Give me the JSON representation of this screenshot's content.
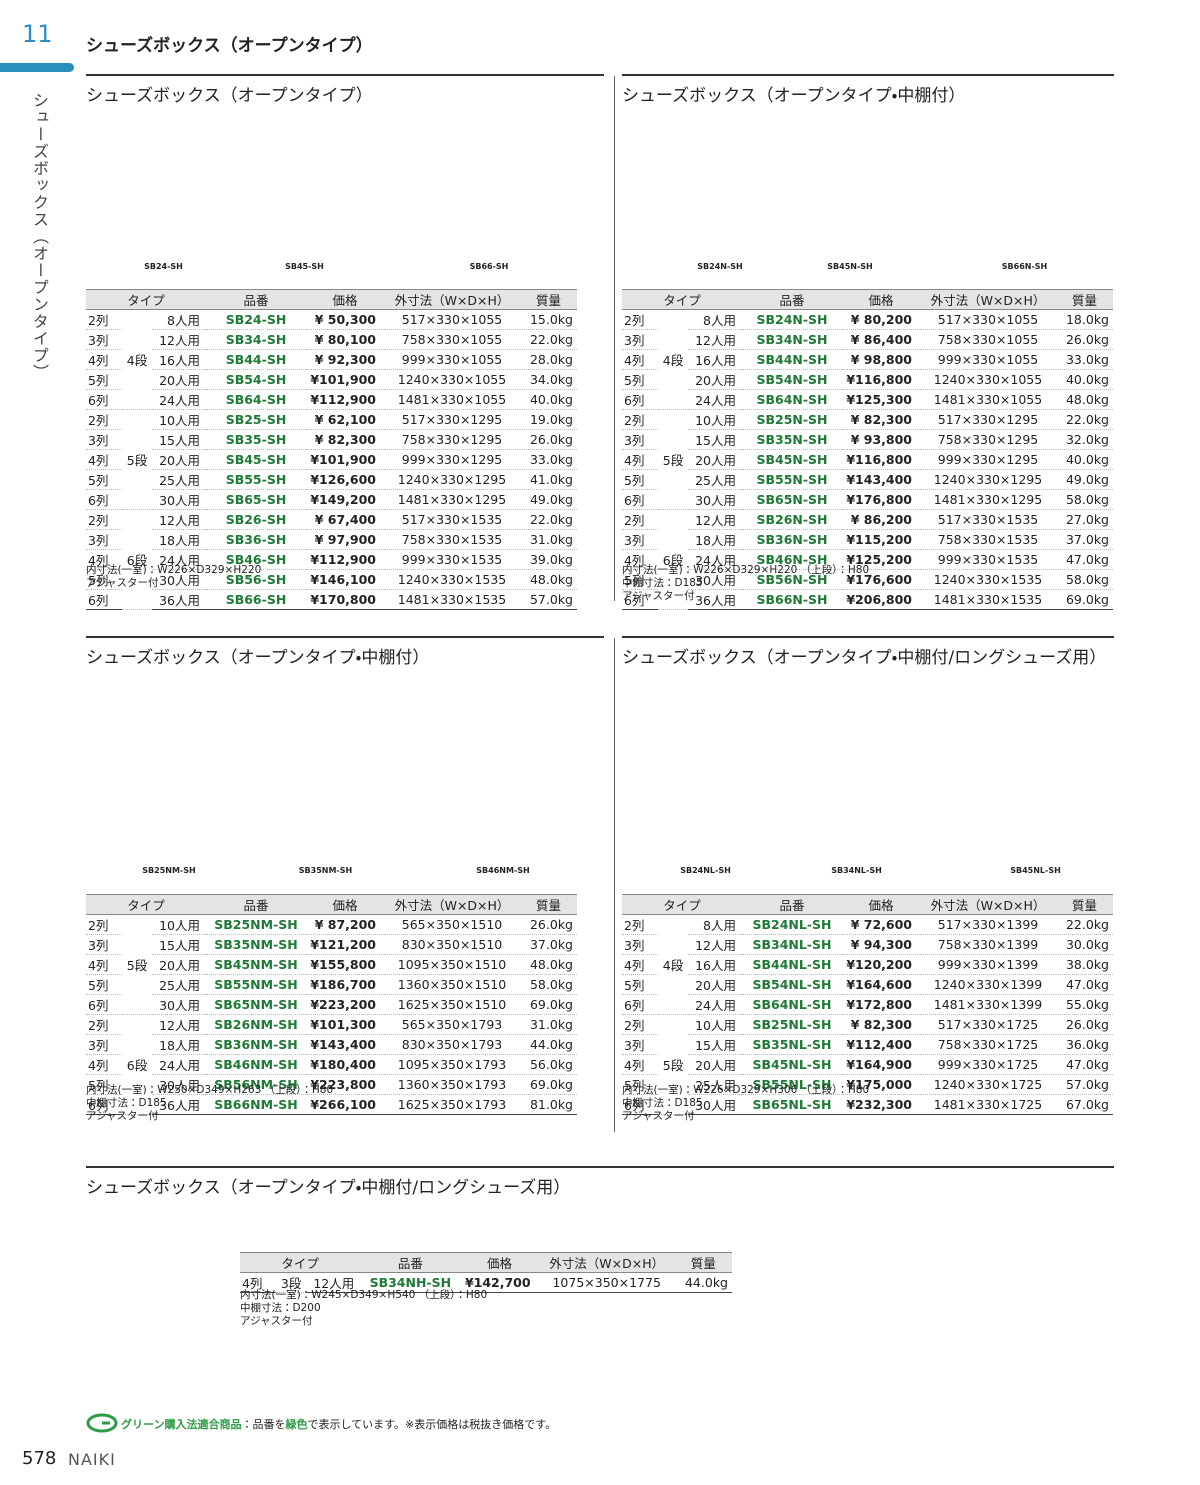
{
  "header": {
    "chapter": "11",
    "title": "シューズボックス（オープンタイプ）",
    "side_label": "シューズボックス（オープンタイプ）"
  },
  "table_headers": [
    "タイプ",
    "品番",
    "価格",
    "外寸法（W×D×H）",
    "質量"
  ],
  "sections": [
    {
      "title": "シューズボックス（オープンタイプ）",
      "images": [
        "SB24-SH",
        "SB45-SH",
        "SB66-SH"
      ],
      "groups": [
        {
          "tier": "4段",
          "rows": [
            [
              "2列",
              "8人用",
              "SB24-SH",
              "¥ 50,300",
              "517×330×1055",
              "15.0kg"
            ],
            [
              "3列",
              "12人用",
              "SB34-SH",
              "¥ 80,100",
              "758×330×1055",
              "22.0kg"
            ],
            [
              "4列",
              "16人用",
              "SB44-SH",
              "¥ 92,300",
              "999×330×1055",
              "28.0kg"
            ],
            [
              "5列",
              "20人用",
              "SB54-SH",
              "¥101,900",
              "1240×330×1055",
              "34.0kg"
            ],
            [
              "6列",
              "24人用",
              "SB64-SH",
              "¥112,900",
              "1481×330×1055",
              "40.0kg"
            ]
          ]
        },
        {
          "tier": "5段",
          "rows": [
            [
              "2列",
              "10人用",
              "SB25-SH",
              "¥ 62,100",
              "517×330×1295",
              "19.0kg"
            ],
            [
              "3列",
              "15人用",
              "SB35-SH",
              "¥ 82,300",
              "758×330×1295",
              "26.0kg"
            ],
            [
              "4列",
              "20人用",
              "SB45-SH",
              "¥101,900",
              "999×330×1295",
              "33.0kg"
            ],
            [
              "5列",
              "25人用",
              "SB55-SH",
              "¥126,600",
              "1240×330×1295",
              "41.0kg"
            ],
            [
              "6列",
              "30人用",
              "SB65-SH",
              "¥149,200",
              "1481×330×1295",
              "49.0kg"
            ]
          ]
        },
        {
          "tier": "6段",
          "rows": [
            [
              "2列",
              "12人用",
              "SB26-SH",
              "¥ 67,400",
              "517×330×1535",
              "22.0kg"
            ],
            [
              "3列",
              "18人用",
              "SB36-SH",
              "¥ 97,900",
              "758×330×1535",
              "31.0kg"
            ],
            [
              "4列",
              "24人用",
              "SB46-SH",
              "¥112,900",
              "999×330×1535",
              "39.0kg"
            ],
            [
              "5列",
              "30人用",
              "SB56-SH",
              "¥146,100",
              "1240×330×1535",
              "48.0kg"
            ],
            [
              "6列",
              "36人用",
              "SB66-SH",
              "¥170,800",
              "1481×330×1535",
              "57.0kg"
            ]
          ]
        }
      ],
      "notes": [
        "内寸法(一室)：W226×D329×H220",
        "アジャスター付"
      ]
    },
    {
      "title": "シューズボックス（オープンタイプ・中棚付）",
      "images": [
        "SB24N-SH",
        "SB45N-SH",
        "SB66N-SH"
      ],
      "groups": [
        {
          "tier": "4段",
          "rows": [
            [
              "2列",
              "8人用",
              "SB24N-SH",
              "¥ 80,200",
              "517×330×1055",
              "18.0kg"
            ],
            [
              "3列",
              "12人用",
              "SB34N-SH",
              "¥ 86,400",
              "758×330×1055",
              "26.0kg"
            ],
            [
              "4列",
              "16人用",
              "SB44N-SH",
              "¥ 98,800",
              "999×330×1055",
              "33.0kg"
            ],
            [
              "5列",
              "20人用",
              "SB54N-SH",
              "¥116,800",
              "1240×330×1055",
              "40.0kg"
            ],
            [
              "6列",
              "24人用",
              "SB64N-SH",
              "¥125,300",
              "1481×330×1055",
              "48.0kg"
            ]
          ]
        },
        {
          "tier": "5段",
          "rows": [
            [
              "2列",
              "10人用",
              "SB25N-SH",
              "¥ 82,300",
              "517×330×1295",
              "22.0kg"
            ],
            [
              "3列",
              "15人用",
              "SB35N-SH",
              "¥ 93,800",
              "758×330×1295",
              "32.0kg"
            ],
            [
              "4列",
              "20人用",
              "SB45N-SH",
              "¥116,800",
              "999×330×1295",
              "40.0kg"
            ],
            [
              "5列",
              "25人用",
              "SB55N-SH",
              "¥143,400",
              "1240×330×1295",
              "49.0kg"
            ],
            [
              "6列",
              "30人用",
              "SB65N-SH",
              "¥176,800",
              "1481×330×1295",
              "58.0kg"
            ]
          ]
        },
        {
          "tier": "6段",
          "rows": [
            [
              "2列",
              "12人用",
              "SB26N-SH",
              "¥ 86,200",
              "517×330×1535",
              "27.0kg"
            ],
            [
              "3列",
              "18人用",
              "SB36N-SH",
              "¥115,200",
              "758×330×1535",
              "37.0kg"
            ],
            [
              "4列",
              "24人用",
              "SB46N-SH",
              "¥125,200",
              "999×330×1535",
              "47.0kg"
            ],
            [
              "5列",
              "30人用",
              "SB56N-SH",
              "¥176,600",
              "1240×330×1535",
              "58.0kg"
            ],
            [
              "6列",
              "36人用",
              "SB66N-SH",
              "¥206,800",
              "1481×330×1535",
              "69.0kg"
            ]
          ]
        }
      ],
      "notes": [
        "内寸法(一室)：W226×D329×H220 （上段）：H80",
        "中棚寸法：D185",
        "アジャスター付"
      ]
    },
    {
      "title": "シューズボックス（オープンタイプ・中棚付）",
      "images": [
        "SB25NM-SH",
        "SB35NM-SH",
        "SB46NM-SH"
      ],
      "groups": [
        {
          "tier": "5段",
          "rows": [
            [
              "2列",
              "10人用",
              "SB25NM-SH",
              "¥ 87,200",
              "565×350×1510",
              "26.0kg"
            ],
            [
              "3列",
              "15人用",
              "SB35NM-SH",
              "¥121,200",
              "830×350×1510",
              "37.0kg"
            ],
            [
              "4列",
              "20人用",
              "SB45NM-SH",
              "¥155,800",
              "1095×350×1510",
              "48.0kg"
            ],
            [
              "5列",
              "25人用",
              "SB55NM-SH",
              "¥186,700",
              "1360×350×1510",
              "58.0kg"
            ],
            [
              "6列",
              "30人用",
              "SB65NM-SH",
              "¥223,200",
              "1625×350×1510",
              "69.0kg"
            ]
          ]
        },
        {
          "tier": "6段",
          "rows": [
            [
              "2列",
              "12人用",
              "SB26NM-SH",
              "¥101,300",
              "565×350×1793",
              "31.0kg"
            ],
            [
              "3列",
              "18人用",
              "SB36NM-SH",
              "¥143,400",
              "830×350×1793",
              "44.0kg"
            ],
            [
              "4列",
              "24人用",
              "SB46NM-SH",
              "¥180,400",
              "1095×350×1793",
              "56.0kg"
            ],
            [
              "5列",
              "30人用",
              "SB56NM-SH",
              "¥223,800",
              "1360×350×1793",
              "69.0kg"
            ],
            [
              "6列",
              "36人用",
              "SB66NM-SH",
              "¥266,100",
              "1625×350×1793",
              "81.0kg"
            ]
          ]
        }
      ],
      "notes": [
        "内寸法(一室)：W250×D349×H263 （上段）：H80",
        "中棚寸法：D185",
        "アジャスター付"
      ]
    },
    {
      "title": "シューズボックス（オープンタイプ・中棚付/ロングシューズ用）",
      "images": [
        "SB24NL-SH",
        "SB34NL-SH",
        "SB45NL-SH"
      ],
      "groups": [
        {
          "tier": "4段",
          "rows": [
            [
              "2列",
              "8人用",
              "SB24NL-SH",
              "¥ 72,600",
              "517×330×1399",
              "22.0kg"
            ],
            [
              "3列",
              "12人用",
              "SB34NL-SH",
              "¥ 94,300",
              "758×330×1399",
              "30.0kg"
            ],
            [
              "4列",
              "16人用",
              "SB44NL-SH",
              "¥120,200",
              "999×330×1399",
              "38.0kg"
            ],
            [
              "5列",
              "20人用",
              "SB54NL-SH",
              "¥164,600",
              "1240×330×1399",
              "47.0kg"
            ],
            [
              "6列",
              "24人用",
              "SB64NL-SH",
              "¥172,800",
              "1481×330×1399",
              "55.0kg"
            ]
          ]
        },
        {
          "tier": "5段",
          "rows": [
            [
              "2列",
              "10人用",
              "SB25NL-SH",
              "¥ 82,300",
              "517×330×1725",
              "26.0kg"
            ],
            [
              "3列",
              "15人用",
              "SB35NL-SH",
              "¥112,400",
              "758×330×1725",
              "36.0kg"
            ],
            [
              "4列",
              "20人用",
              "SB45NL-SH",
              "¥164,900",
              "999×330×1725",
              "47.0kg"
            ],
            [
              "5列",
              "25人用",
              "SB55NL-SH",
              "¥175,000",
              "1240×330×1725",
              "57.0kg"
            ],
            [
              "6列",
              "30人用",
              "SB65NL-SH",
              "¥232,300",
              "1481×330×1725",
              "67.0kg"
            ]
          ]
        }
      ],
      "notes": [
        "内寸法(一室)：W226×D329×H306 （上段）：H80",
        "中棚寸法：D185",
        "アジャスター付"
      ]
    },
    {
      "title": "シューズボックス（オープンタイプ・中棚付/ロングシューズ用）",
      "groups": [
        {
          "tier": "3段",
          "rows": [
            [
              "4列",
              "12人用",
              "SB34NH-SH",
              "¥142,700",
              "1075×350×1775",
              "44.0kg"
            ]
          ]
        }
      ],
      "notes": [
        "内寸法(一室)：W245×D349×H540 （上段）：H80",
        "中棚寸法：D200",
        "アジャスター付"
      ]
    }
  ],
  "footer": {
    "note": [
      "グリーン購入法適合商品",
      "：品番を",
      "緑色",
      "で表示しています。※表示価格は税抜き価格です。"
    ],
    "page": "578",
    "brand": "NAIKI"
  }
}
